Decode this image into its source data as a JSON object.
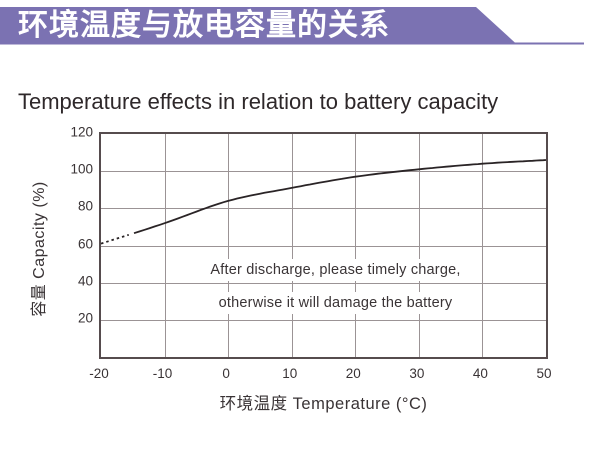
{
  "colors": {
    "banner": "#7b72b2",
    "plot_border": "#564c4e",
    "grid": "#9b9395",
    "curve": "#2a2426",
    "text": "#393335"
  },
  "header": {
    "title_zh": "环境温度与放电容量的关系"
  },
  "subtitle": "Temperature effects in relation to battery capacity",
  "chart_data": {
    "type": "line",
    "title": "Temperature effects in relation to battery capacity",
    "xlabel": "环境温度 Temperature (°C)",
    "ylabel": "容量 Capacity (%)",
    "xlim": [
      -20,
      50
    ],
    "ylim": [
      0,
      120
    ],
    "xticks": [
      -20,
      -10,
      0,
      10,
      20,
      30,
      40,
      50
    ],
    "yticks": [
      20,
      40,
      60,
      80,
      100,
      120
    ],
    "grid": true,
    "legend": "none",
    "series": [
      {
        "name": "capacity-vs-temperature",
        "x": [
          -20,
          -10,
          0,
          10,
          20,
          30,
          40,
          50
        ],
        "y": [
          61,
          72,
          84,
          91,
          97,
          101,
          104,
          106
        ],
        "dashed_until_x": -15
      }
    ],
    "annotations": [
      "After discharge, please timely charge,",
      "otherwise it will damage the battery"
    ]
  }
}
